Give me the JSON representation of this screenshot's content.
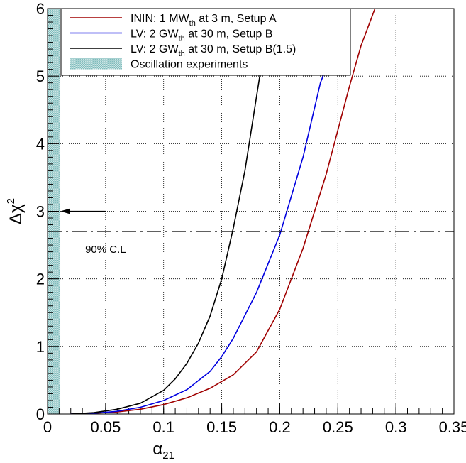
{
  "chart_data": {
    "type": "line",
    "title": "",
    "xlabel": {
      "base": "α",
      "sub": "21"
    },
    "ylabel": {
      "base": "Δχ",
      "sup": "2"
    },
    "xlim": [
      0,
      0.35
    ],
    "ylim": [
      0,
      6
    ],
    "x_ticks": [
      "0",
      "0.05",
      "0.1",
      "0.15",
      "0.2",
      "0.25",
      "0.3",
      "0.35"
    ],
    "y_ticks": [
      "0",
      "1",
      "2",
      "3",
      "4",
      "5",
      "6"
    ],
    "grid": true,
    "legend_position": "top-right",
    "series": [
      {
        "name": "ININ: 1 MW_th at 3 m, Setup A",
        "legend_parts": {
          "pre": "ININ: 1 MW",
          "sub": "th",
          "post": " at 3 m, Setup A"
        },
        "color": "#a00000",
        "x": [
          0.02,
          0.04,
          0.06,
          0.08,
          0.1,
          0.12,
          0.14,
          0.16,
          0.18,
          0.2,
          0.22,
          0.24,
          0.26,
          0.27,
          0.282
        ],
        "y": [
          0.0,
          0.01,
          0.03,
          0.07,
          0.14,
          0.24,
          0.38,
          0.58,
          0.92,
          1.55,
          2.45,
          3.55,
          4.85,
          5.45,
          6.0
        ]
      },
      {
        "name": "LV: 2 GW_th at 30 m, Setup B",
        "legend_parts": {
          "pre": "LV: 2 GW",
          "sub": "th",
          "post": " at 30 m, Setup B"
        },
        "color": "#0000e0",
        "x": [
          0.02,
          0.04,
          0.06,
          0.08,
          0.1,
          0.12,
          0.14,
          0.15,
          0.16,
          0.18,
          0.2,
          0.22,
          0.235,
          0.244
        ],
        "y": [
          0.0,
          0.01,
          0.04,
          0.1,
          0.2,
          0.36,
          0.63,
          0.85,
          1.12,
          1.8,
          2.65,
          3.8,
          4.9,
          5.3
        ]
      },
      {
        "name": "LV: 2 GW_th at 30 m, Setup B(1.5)",
        "legend_parts": {
          "pre": "LV: 2 GW",
          "sub": "th",
          "post": " at 30 m, Setup B(1.5)"
        },
        "color": "#000000",
        "x": [
          0.02,
          0.04,
          0.06,
          0.08,
          0.1,
          0.11,
          0.12,
          0.13,
          0.14,
          0.15,
          0.16,
          0.17,
          0.18,
          0.186
        ],
        "y": [
          0.0,
          0.02,
          0.07,
          0.16,
          0.35,
          0.52,
          0.75,
          1.05,
          1.45,
          2.0,
          2.75,
          3.6,
          4.7,
          5.35
        ]
      }
    ],
    "band": {
      "name": "Oscillation experiments",
      "x_from": 0,
      "x_to": 0.011,
      "color": "#8fc3c3"
    },
    "cl_line": {
      "y": 2.7,
      "label": "90% C.L"
    },
    "arrow": {
      "y": 3.0,
      "x_from": 0.05,
      "x_to": 0.011
    }
  }
}
